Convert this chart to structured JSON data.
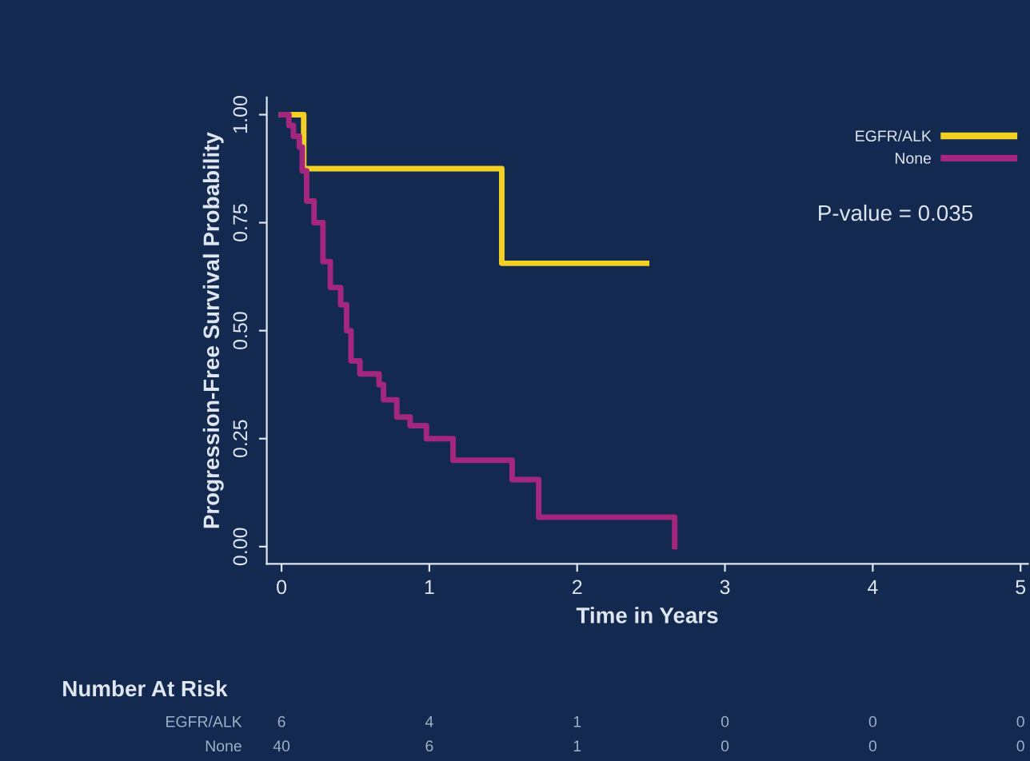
{
  "chart_data": {
    "type": "step",
    "xlabel": "Time in Years",
    "ylabel": "Progression-Free Survival Probability",
    "xlim": [
      -0.1,
      5.05
    ],
    "ylim": [
      -0.04,
      1.04
    ],
    "xticks": [
      0,
      1,
      2,
      3,
      4,
      5
    ],
    "yticks": [
      {
        "value": 0,
        "label": "0.00"
      },
      {
        "value": 0.25,
        "label": "0.25"
      },
      {
        "value": 0.5,
        "label": "0.50"
      },
      {
        "value": 0.75,
        "label": "0.75"
      },
      {
        "value": 1,
        "label": "1.00"
      }
    ],
    "grid": false,
    "legend": "top right",
    "line_style": "solid",
    "series": [
      {
        "name": "EGFR/ALK",
        "color": "#f2d024",
        "x": [
          0,
          0.15,
          1.49,
          2.47
        ],
        "values": [
          1.0,
          0.875,
          0.656,
          0.656
        ]
      },
      {
        "name": "None",
        "color": "#a3277c",
        "x": [
          0,
          0.05,
          0.08,
          0.12,
          0.14,
          0.17,
          0.22,
          0.28,
          0.33,
          0.4,
          0.44,
          0.47,
          0.53,
          0.66,
          0.69,
          0.78,
          0.87,
          0.98,
          1.16,
          1.56,
          1.74,
          2.66,
          2.66
        ],
        "values": [
          1.0,
          0.975,
          0.95,
          0.925,
          0.87,
          0.8,
          0.75,
          0.66,
          0.6,
          0.56,
          0.5,
          0.43,
          0.4,
          0.375,
          0.34,
          0.3,
          0.28,
          0.25,
          0.2,
          0.155,
          0.068,
          0.068,
          0.0
        ]
      }
    ],
    "annotations": [
      "P-value = 0.035",
      "Number At Risk",
      "EGFR/ALK",
      "6",
      "4",
      "1",
      "0",
      "0",
      "0",
      "None",
      "40",
      "6",
      "1",
      "0",
      "0",
      "0"
    ]
  }
}
